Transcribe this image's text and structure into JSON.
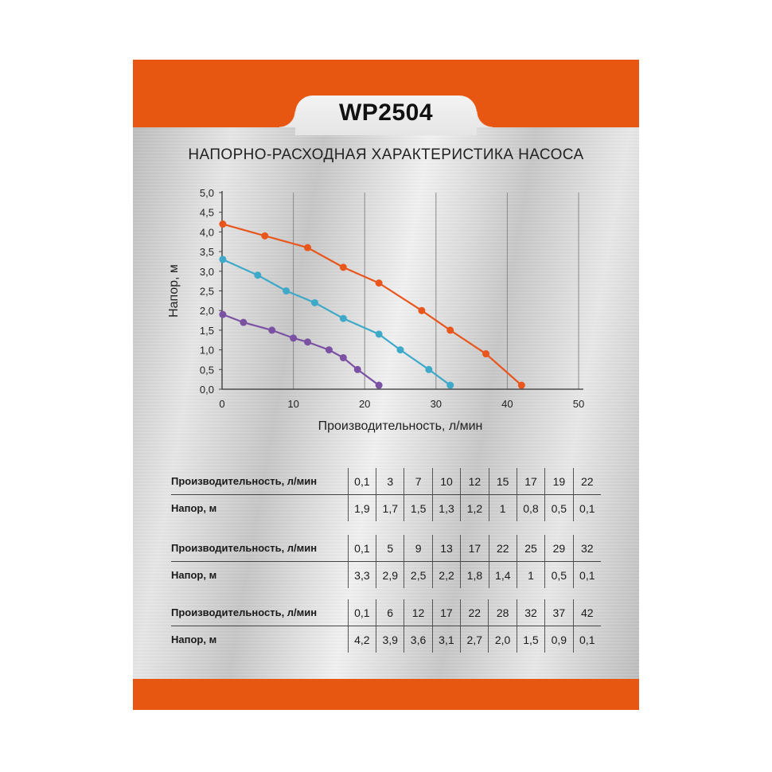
{
  "model": "WP2504",
  "chart_title": "НАПОРНО-РАСХОДНАЯ ХАРАКТЕРИСТИКА НАСОСА",
  "colors": {
    "accent": "#e85712",
    "series_orange": "#e8561c",
    "series_blue": "#3ea9c8",
    "series_purple": "#7b52a3"
  },
  "chart_data": {
    "type": "line",
    "xlabel": "Производительность, л/мин",
    "ylabel": "Напор, м",
    "xlim": [
      0,
      50
    ],
    "ylim": [
      0,
      5
    ],
    "x_ticks": [
      "0",
      "10",
      "20",
      "30",
      "40",
      "50"
    ],
    "y_ticks": [
      "0,0",
      "0,5",
      "1,0",
      "1,5",
      "2,0",
      "2,5",
      "3,0",
      "3,5",
      "4,0",
      "4,5",
      "5,0"
    ],
    "grid": true,
    "series": [
      {
        "color": "#e8561c",
        "x": [
          0.1,
          6,
          12,
          17,
          22,
          28,
          32,
          37,
          42
        ],
        "y": [
          4.2,
          3.9,
          3.6,
          3.1,
          2.7,
          2.0,
          1.5,
          0.9,
          0.1
        ]
      },
      {
        "color": "#3ea9c8",
        "x": [
          0.1,
          5,
          9,
          13,
          17,
          22,
          25,
          29,
          32
        ],
        "y": [
          3.3,
          2.9,
          2.5,
          2.2,
          1.8,
          1.4,
          1.0,
          0.5,
          0.1
        ]
      },
      {
        "color": "#7b52a3",
        "x": [
          0.1,
          3,
          7,
          10,
          12,
          15,
          17,
          19,
          22
        ],
        "y": [
          1.9,
          1.7,
          1.5,
          1.3,
          1.2,
          1.0,
          0.8,
          0.5,
          0.1
        ]
      }
    ]
  },
  "tables": [
    {
      "flow_label": "Производительность, л/мин",
      "head_label": "Напор, м",
      "flow": [
        "0,1",
        "3",
        "7",
        "10",
        "12",
        "15",
        "17",
        "19",
        "22"
      ],
      "head": [
        "1,9",
        "1,7",
        "1,5",
        "1,3",
        "1,2",
        "1",
        "0,8",
        "0,5",
        "0,1"
      ]
    },
    {
      "flow_label": "Производительность, л/мин",
      "head_label": "Напор, м",
      "flow": [
        "0,1",
        "5",
        "9",
        "13",
        "17",
        "22",
        "25",
        "29",
        "32"
      ],
      "head": [
        "3,3",
        "2,9",
        "2,5",
        "2,2",
        "1,8",
        "1,4",
        "1",
        "0,5",
        "0,1"
      ]
    },
    {
      "flow_label": "Производительность, л/мин",
      "head_label": "Напор, м",
      "flow": [
        "0,1",
        "6",
        "12",
        "17",
        "22",
        "28",
        "32",
        "37",
        "42"
      ],
      "head": [
        "4,2",
        "3,9",
        "3,6",
        "3,1",
        "2,7",
        "2,0",
        "1,5",
        "0,9",
        "0,1"
      ]
    }
  ]
}
